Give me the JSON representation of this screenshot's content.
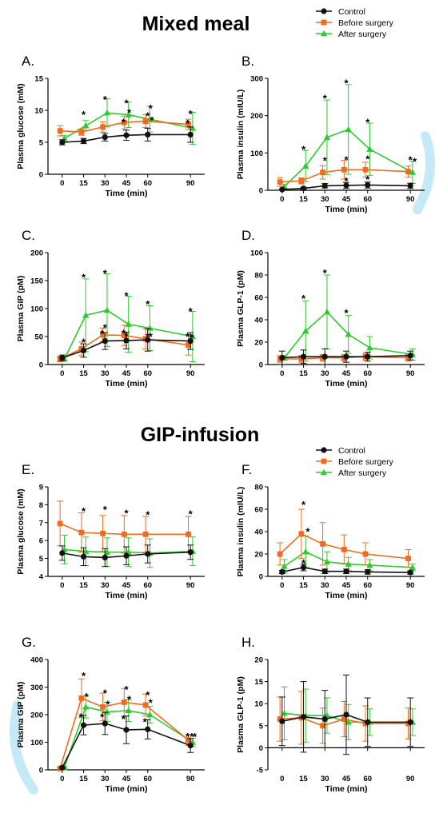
{
  "titles": [
    "Mixed meal",
    "GIP-infusion"
  ],
  "legend": [
    "Control",
    "Before surgery",
    "After surgery"
  ],
  "colors": {
    "Control": "#111111",
    "Before surgery": "#f26b1d",
    "After surgery": "#2bcc2b"
  },
  "chart_data": [
    {
      "id": "A",
      "type": "line",
      "title": "A.",
      "xlabel": "Time (min)",
      "ylabel": "Plasma glucose (mM)",
      "x": [
        0,
        15,
        30,
        45,
        60,
        90
      ],
      "xticks": [
        "0",
        "15",
        "30",
        "45",
        "60",
        "90"
      ],
      "ylim": [
        0,
        15
      ],
      "yticks": [
        "0",
        "5",
        "10",
        "15"
      ],
      "series": [
        {
          "name": "Control",
          "values": [
            5.0,
            5.2,
            5.8,
            6.1,
            6.2,
            6.2
          ],
          "errors": [
            0.4,
            0.4,
            0.6,
            0.8,
            1.0,
            1.2
          ]
        },
        {
          "name": "Before surgery",
          "values": [
            6.8,
            6.6,
            7.4,
            8.1,
            8.3,
            7.8
          ],
          "errors": [
            0.8,
            0.5,
            0.8,
            1.0,
            1.0,
            0.8
          ]
        },
        {
          "name": "After surgery",
          "values": [
            5.6,
            7.6,
            9.6,
            9.3,
            8.6,
            7.2
          ],
          "errors": [
            0.5,
            0.8,
            2.2,
            2.0,
            2.0,
            2.5
          ]
        }
      ],
      "stars": [
        [
          15,
          9.5
        ],
        [
          30,
          11.9
        ],
        [
          43,
          8.3
        ],
        [
          45,
          11.3
        ],
        [
          47,
          9.8
        ],
        [
          60,
          9.3
        ],
        [
          62,
          10.5
        ],
        [
          63,
          8.6
        ],
        [
          90,
          9.6
        ],
        [
          88,
          8.1
        ]
      ]
    },
    {
      "id": "B",
      "type": "line",
      "title": "B.",
      "xlabel": "Time (min)",
      "ylabel": "Plasma insulin (mIU/L)",
      "x": [
        0,
        15,
        30,
        45,
        60,
        90
      ],
      "xticks": [
        "0",
        "15",
        "30",
        "45",
        "60",
        "90"
      ],
      "ylim": [
        0,
        300
      ],
      "yticks": [
        "0",
        "100",
        "200",
        "300"
      ],
      "series": [
        {
          "name": "Control",
          "values": [
            2,
            5,
            12,
            13,
            14,
            12
          ],
          "errors": [
            2,
            3,
            6,
            8,
            8,
            7
          ]
        },
        {
          "name": "Before surgery",
          "values": [
            22,
            25,
            48,
            55,
            55,
            50
          ],
          "errors": [
            12,
            8,
            18,
            25,
            20,
            15
          ]
        },
        {
          "name": "After surgery",
          "values": [
            10,
            65,
            142,
            163,
            110,
            48
          ],
          "errors": [
            5,
            42,
            100,
            120,
            70,
            30
          ]
        }
      ],
      "stars": [
        [
          15,
          112
        ],
        [
          30,
          250
        ],
        [
          30,
          82
        ],
        [
          45,
          290
        ],
        [
          45,
          85
        ],
        [
          45,
          28
        ],
        [
          60,
          185
        ],
        [
          60,
          87
        ],
        [
          60,
          32
        ],
        [
          90,
          85
        ],
        [
          93,
          80
        ]
      ]
    },
    {
      "id": "C",
      "type": "line",
      "title": "C.",
      "xlabel": "Time (min)",
      "ylabel": "Plasma GIP (pM)",
      "x": [
        0,
        15,
        30,
        45,
        60,
        90
      ],
      "xticks": [
        "0",
        "15",
        "30",
        "45",
        "60",
        "90"
      ],
      "ylim": [
        0,
        200
      ],
      "yticks": [
        "0",
        "50",
        "100",
        "150",
        "200"
      ],
      "series": [
        {
          "name": "Control",
          "values": [
            12,
            25,
            42,
            43,
            44,
            42
          ],
          "errors": [
            5,
            12,
            15,
            15,
            20,
            15
          ]
        },
        {
          "name": "Before surgery",
          "values": [
            10,
            28,
            53,
            52,
            46,
            35
          ],
          "errors": [
            5,
            12,
            12,
            18,
            18,
            18
          ]
        },
        {
          "name": "After surgery",
          "values": [
            10,
            88,
            97,
            72,
            65,
            50
          ],
          "errors": [
            4,
            65,
            65,
            50,
            40,
            45
          ]
        }
      ],
      "stars": [
        [
          15,
          158
        ],
        [
          30,
          165
        ],
        [
          45,
          125
        ],
        [
          60,
          110
        ],
        [
          90,
          97
        ],
        [
          15,
          42
        ],
        [
          30,
          68
        ],
        [
          28,
          57
        ],
        [
          45,
          53
        ],
        [
          43,
          58
        ],
        [
          60,
          52
        ],
        [
          62,
          52
        ],
        [
          88,
          52
        ],
        [
          91,
          50
        ]
      ]
    },
    {
      "id": "D",
      "type": "line",
      "title": "D.",
      "xlabel": "Time (min)",
      "ylabel": "Plasma GLP-1  (pM)",
      "x": [
        0,
        15,
        30,
        45,
        60,
        90
      ],
      "xticks": [
        "0",
        "15",
        "30",
        "45",
        "60",
        "90"
      ],
      "ylim": [
        0,
        100
      ],
      "yticks": [
        "0",
        "20",
        "40",
        "60",
        "80",
        "100"
      ],
      "series": [
        {
          "name": "Control",
          "values": [
            6,
            7,
            7,
            7,
            7,
            8
          ],
          "errors": [
            6,
            6,
            7,
            5,
            4,
            4
          ]
        },
        {
          "name": "Before surgery",
          "values": [
            5,
            5,
            6,
            6,
            7,
            6
          ],
          "errors": [
            3,
            3,
            3,
            3,
            3,
            3
          ]
        },
        {
          "name": "After surgery",
          "values": [
            6,
            30,
            47,
            27,
            15,
            9
          ],
          "errors": [
            2,
            27,
            33,
            17,
            10,
            5
          ]
        }
      ],
      "stars": [
        [
          15,
          60
        ],
        [
          30,
          83
        ],
        [
          45,
          47
        ]
      ]
    },
    {
      "id": "E",
      "type": "line",
      "title": "E.",
      "xlabel": "Time (min)",
      "ylabel": "Plasma glucose (mM)",
      "x": [
        0,
        15,
        30,
        45,
        60,
        90
      ],
      "xticks": [
        "0",
        "15",
        "30",
        "45",
        "60",
        "90"
      ],
      "ylim": [
        4,
        9
      ],
      "yticks": [
        "4",
        "5",
        "6",
        "7",
        "8",
        "9"
      ],
      "series": [
        {
          "name": "Control",
          "values": [
            5.3,
            5.1,
            5.05,
            5.15,
            5.25,
            5.35
          ],
          "errors": [
            0.4,
            0.5,
            0.5,
            0.5,
            0.5,
            0.4
          ]
        },
        {
          "name": "Before surgery",
          "values": [
            6.95,
            6.45,
            6.4,
            6.35,
            6.35,
            6.35
          ],
          "errors": [
            1.25,
            1.1,
            1.0,
            1.05,
            1.0,
            1.0
          ]
        },
        {
          "name": "After surgery",
          "values": [
            5.5,
            5.4,
            5.35,
            5.35,
            5.3,
            5.4
          ],
          "errors": [
            0.8,
            0.8,
            0.8,
            0.8,
            0.8,
            0.8
          ]
        }
      ],
      "stars": [
        [
          15,
          7.7
        ],
        [
          30,
          7.8
        ],
        [
          45,
          7.6
        ],
        [
          60,
          7.5
        ],
        [
          90,
          7.55
        ]
      ]
    },
    {
      "id": "F",
      "type": "line",
      "title": "F.",
      "xlabel": "Time (min)",
      "ylabel": "Plasma insulin (mIU/L)",
      "x": [
        0,
        15,
        30,
        45,
        60,
        90
      ],
      "xticks": [
        "0",
        "15",
        "30",
        "45",
        "60",
        "90"
      ],
      "ylim": [
        0,
        80
      ],
      "yticks": [
        "0",
        "20",
        "40",
        "60",
        "80"
      ],
      "series": [
        {
          "name": "Control",
          "values": [
            4,
            8,
            4.5,
            4.5,
            4,
            3.5
          ],
          "errors": [
            1.5,
            3,
            2,
            2,
            2,
            1.5
          ]
        },
        {
          "name": "Before surgery",
          "values": [
            20,
            38,
            29,
            24,
            20,
            16
          ],
          "errors": [
            10,
            22,
            19,
            13,
            10,
            8
          ]
        },
        {
          "name": "After surgery",
          "values": [
            9,
            22,
            13,
            11,
            10,
            8
          ],
          "errors": [
            6,
            14,
            9,
            6,
            5,
            3
          ]
        }
      ],
      "stars": [
        [
          15,
          65
        ],
        [
          18,
          41
        ],
        [
          15,
          13
        ]
      ]
    },
    {
      "id": "G",
      "type": "line",
      "title": "G.",
      "xlabel": "Time (min)",
      "ylabel": "Plasma GIP (pM)",
      "x": [
        0,
        15,
        30,
        45,
        60,
        90
      ],
      "xticks": [
        "0",
        "15",
        "30",
        "45",
        "60",
        "90"
      ],
      "ylim": [
        0,
        400
      ],
      "yticks": [
        "0",
        "100",
        "200",
        "300",
        "400"
      ],
      "series": [
        {
          "name": "Control",
          "values": [
            8,
            162,
            168,
            145,
            147,
            88
          ],
          "errors": [
            4,
            35,
            40,
            50,
            35,
            25
          ]
        },
        {
          "name": "Before surgery",
          "values": [
            5,
            260,
            228,
            245,
            235,
            108
          ],
          "errors": [
            3,
            70,
            50,
            50,
            40,
            20
          ]
        },
        {
          "name": "After surgery",
          "values": [
            8,
            228,
            210,
            215,
            200,
            100
          ],
          "errors": [
            3,
            40,
            35,
            40,
            30,
            15
          ]
        }
      ],
      "stars": [
        [
          15,
          345
        ],
        [
          17,
          270
        ],
        [
          30,
          282
        ],
        [
          32,
          242
        ],
        [
          45,
          295
        ],
        [
          47,
          260
        ],
        [
          60,
          275
        ],
        [
          62,
          248
        ],
        [
          13,
          195
        ],
        [
          28,
          195
        ],
        [
          43,
          188
        ],
        [
          58,
          178
        ],
        [
          88,
          125
        ],
        [
          91,
          125
        ],
        [
          93,
          125
        ]
      ]
    },
    {
      "id": "H",
      "type": "line",
      "title": "H.",
      "xlabel": "Time (min)",
      "ylabel": "Plasma GLP-1  (pM)",
      "x": [
        0,
        15,
        30,
        45,
        60,
        90
      ],
      "xticks": [
        "0",
        "15",
        "30",
        "45",
        "60",
        "90"
      ],
      "ylim": [
        -5,
        20
      ],
      "yticks": [
        "-5",
        "0",
        "5",
        "10",
        "15",
        "20"
      ],
      "series": [
        {
          "name": "Control",
          "values": [
            6,
            7,
            6.5,
            7.5,
            5.8,
            5.8
          ],
          "errors": [
            5.5,
            8,
            6.5,
            9,
            5.5,
            5.5
          ]
        },
        {
          "name": "Before surgery",
          "values": [
            6.5,
            6.8,
            5,
            6.5,
            5.5,
            5.5
          ],
          "errors": [
            5,
            6,
            4,
            4,
            4,
            3.5
          ]
        },
        {
          "name": "After surgery",
          "values": [
            7.8,
            7.3,
            7.3,
            5.8,
            5.8,
            5.8
          ],
          "errors": [
            6,
            6,
            4,
            4,
            3,
            3
          ]
        }
      ],
      "stars": []
    }
  ]
}
